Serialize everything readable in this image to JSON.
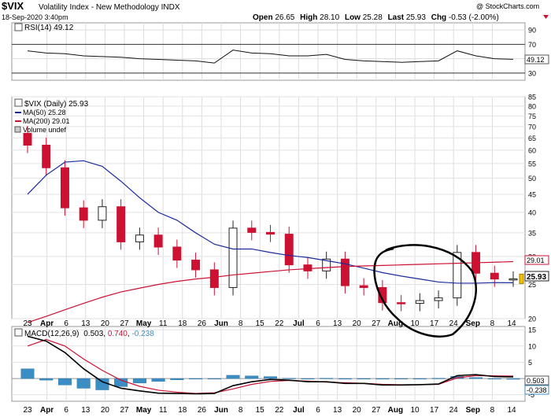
{
  "header": {
    "symbol": "$VIX",
    "name": "Volatility Index - New Methodology INDX",
    "date": "18-Sep-2020 3:40pm",
    "watermark": "@ StockCharts.com",
    "open_label": "Open",
    "open": "26.65",
    "high_label": "High",
    "high": "28.10",
    "low_label": "Low",
    "low": "25.28",
    "last_label": "Last",
    "last": "25.93",
    "chg_label": "Chg",
    "chg": "-0.53 (-2.00%)"
  },
  "colors": {
    "up": "#222222",
    "down": "#cc1133",
    "ma50": "#1a2a9a",
    "ma200": "#cc1133",
    "hist": "#3b8ec4",
    "last_box": "#f2c200",
    "annotation": "#000000"
  },
  "rsi": {
    "label": "RSI(14) 49.12",
    "value_box": "49.12",
    "ticks": [
      "90",
      "70",
      "50",
      "30"
    ]
  },
  "price": {
    "legend": [
      "$VIX (Daily) 25.93",
      "MA(50) 25.28",
      "MA(200) 29.01",
      "Volume undef"
    ],
    "ticks": [
      "85",
      "80",
      "75",
      "70",
      "65",
      "60",
      "55",
      "50",
      "45",
      "40",
      "35",
      "30",
      "25",
      "20"
    ],
    "ma200_box": "29.01",
    "last_box": "25.93"
  },
  "macd": {
    "label_prefix": "MACD(12,26,9)",
    "v1": "0.503",
    "v2": "0.740",
    "v3": "-0.238",
    "value_box1": "0.503",
    "value_box2": "-0.238",
    "ticks": [
      "15",
      "10",
      "5",
      "0",
      "-5"
    ]
  },
  "x_labels": [
    "23",
    "Apr",
    "6",
    "13",
    "20",
    "27",
    "May",
    "11",
    "18",
    "26",
    "Jun",
    "8",
    "15",
    "22",
    "Jul",
    "6",
    "13",
    "20",
    "27",
    "Aug",
    "10",
    "17",
    "24",
    "Sep",
    "8",
    "14"
  ],
  "chart_data": [
    {
      "type": "candlestick",
      "title": "$VIX Volatility Index - New Methodology INDX",
      "ylim": [
        20,
        85
      ],
      "y_scale": "log",
      "x": [
        "Mar 23",
        "Mar 30",
        "Apr 6",
        "Apr 13",
        "Apr 20",
        "Apr 27",
        "May 4",
        "May 11",
        "May 18",
        "May 26",
        "Jun 1",
        "Jun 8",
        "Jun 15",
        "Jun 22",
        "Jun 29",
        "Jul 6",
        "Jul 13",
        "Jul 20",
        "Jul 27",
        "Aug 3",
        "Aug 10",
        "Aug 17",
        "Aug 24",
        "Aug 31",
        "Sep 8",
        "Sep 14",
        "Sep 18"
      ],
      "close": [
        62.0,
        53.5,
        41.2,
        38.0,
        41.5,
        33.0,
        34.5,
        31.9,
        29.3,
        27.5,
        24.5,
        36.1,
        35.1,
        34.7,
        28.4,
        27.3,
        29.5,
        24.8,
        24.5,
        22.2,
        22.1,
        22.5,
        22.9,
        30.8,
        26.9,
        25.9,
        25.93
      ],
      "series": [
        {
          "name": "MA(50)",
          "values": [
            45.0,
            51.0,
            55.5,
            56.0,
            54.0,
            49.0,
            44.0,
            40.0,
            38.0,
            35.0,
            32.5,
            31.5,
            31.5,
            30.8,
            30.2,
            29.8,
            29.2,
            28.6,
            27.8,
            27.0,
            26.4,
            25.9,
            25.4,
            25.2,
            25.2,
            25.3,
            25.28
          ]
        },
        {
          "name": "MA(200)",
          "values": [
            19.5,
            20.3,
            21.2,
            22.1,
            23.0,
            23.8,
            24.4,
            25.0,
            25.5,
            25.9,
            26.2,
            26.6,
            26.9,
            27.2,
            27.5,
            27.7,
            27.9,
            28.1,
            28.2,
            28.3,
            28.4,
            28.5,
            28.6,
            28.7,
            28.8,
            28.9,
            29.01
          ]
        }
      ]
    },
    {
      "type": "line",
      "title": "RSI(14)",
      "ylim": [
        20,
        100
      ],
      "series": [
        {
          "name": "RSI(14)",
          "values": [
            61,
            58,
            57,
            54,
            53,
            52,
            50,
            49,
            48,
            47,
            44,
            62,
            58,
            57,
            54,
            54,
            56,
            49,
            47,
            46,
            45,
            46,
            47,
            61,
            54,
            50,
            49.12
          ]
        }
      ]
    },
    {
      "type": "line",
      "title": "MACD(12,26,9)",
      "ylim": [
        -7,
        16
      ],
      "series": [
        {
          "name": "MACD",
          "values": [
            13.0,
            11.5,
            8.0,
            3.0,
            -1.0,
            -3.0,
            -3.8,
            -4.5,
            -4.6,
            -4.7,
            -4.6,
            -2.2,
            -1.0,
            -0.3,
            -0.5,
            -1.0,
            -1.0,
            -1.5,
            -1.5,
            -2.0,
            -2.0,
            -1.9,
            -1.7,
            0.9,
            1.2,
            0.6,
            0.503
          ]
        },
        {
          "name": "Signal",
          "values": [
            10.0,
            12.0,
            10.0,
            6.0,
            2.5,
            -0.5,
            -2.4,
            -3.6,
            -4.2,
            -4.6,
            -4.4,
            -3.2,
            -1.8,
            -0.9,
            -0.6,
            -0.8,
            -1.1,
            -1.3,
            -1.5,
            -1.8,
            -1.9,
            -1.9,
            -1.8,
            0.2,
            0.9,
            0.8,
            0.74
          ]
        },
        {
          "name": "Histogram",
          "values": [
            3.0,
            -0.5,
            -2.0,
            -3.0,
            -3.5,
            -2.5,
            -1.4,
            -0.9,
            -0.4,
            -0.1,
            -0.2,
            1.0,
            0.8,
            0.6,
            0.1,
            -0.2,
            0.1,
            -0.2,
            0.0,
            -0.2,
            -0.1,
            0.0,
            0.1,
            0.7,
            0.3,
            -0.2,
            -0.238
          ]
        }
      ]
    }
  ]
}
